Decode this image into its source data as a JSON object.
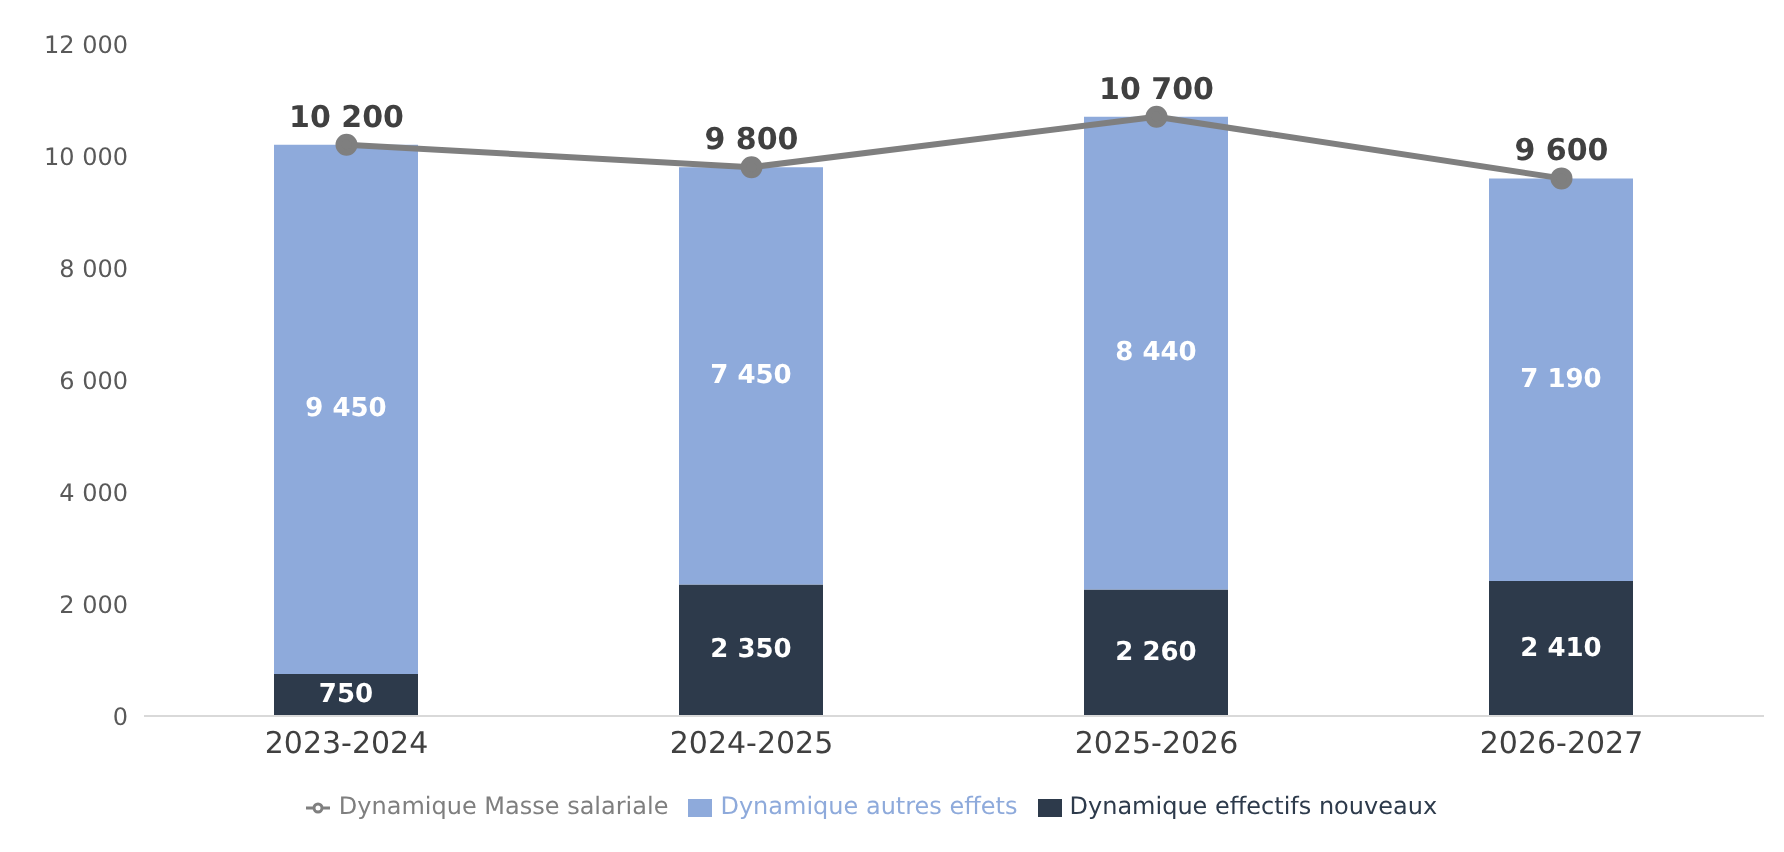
{
  "chart_data": {
    "type": "bar",
    "stacked": true,
    "categories": [
      "2023-2024",
      "2024-2025",
      "2025-2026",
      "2026-2027"
    ],
    "series": [
      {
        "name": "Dynamique effectifs nouveaux",
        "color": "#2d3a4b",
        "values": [
          750,
          2350,
          2260,
          2410
        ],
        "value_labels": [
          "750",
          "2 350",
          "2 260",
          "2 410"
        ]
      },
      {
        "name": "Dynamique autres effets",
        "color": "#8eaadb",
        "values": [
          9450,
          7450,
          8440,
          7190
        ],
        "value_labels": [
          "9 450",
          "7 450",
          "8 440",
          "7 190"
        ]
      },
      {
        "name": "Dynamique Masse salariale",
        "type": "line",
        "color": "#7f7f7f",
        "marker": "circle",
        "values": [
          10200,
          9800,
          10700,
          9600
        ],
        "value_labels": [
          "10 200",
          "9 800",
          "10 700",
          "9 600"
        ]
      }
    ],
    "ylim": [
      0,
      12000
    ],
    "yticks": [
      {
        "value": 0,
        "label": "0"
      },
      {
        "value": 2000,
        "label": "2 000"
      },
      {
        "value": 4000,
        "label": "4 000"
      },
      {
        "value": 6000,
        "label": "6 000"
      },
      {
        "value": 8000,
        "label": "8 000"
      },
      {
        "value": 10000,
        "label": "10 000"
      },
      {
        "value": 12000,
        "label": "12 000"
      }
    ],
    "grid": false,
    "legend": "bottom"
  }
}
